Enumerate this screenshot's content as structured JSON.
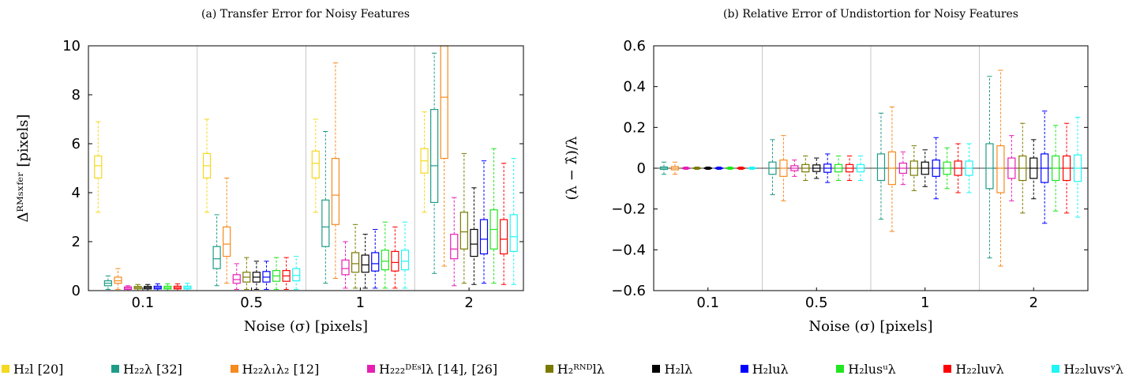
{
  "series_colors": [
    "#f5d81f",
    "#1f9c87",
    "#f58a1f",
    "#e61fb4",
    "#7a7a00",
    "#000000",
    "#0000ff",
    "#1fe61f",
    "#ff0000",
    "#1ff5f5"
  ],
  "legend": [
    "H₂l [20]",
    "H₂₂λ [32]",
    "H₂₂λ₁λ₂ [12]",
    "H₂₂₂ᴰᴱˢlλ [14], [26]",
    "H₂ᴿᴺᴰlλ",
    "H₂lλ",
    "H₂luλ",
    "H₂lusᵘλ",
    "H₂₂luvλ",
    "H₂₂luvsᵛλ"
  ],
  "chart_data": [
    {
      "type": "boxplot",
      "title": "(a) Transfer Error for Noisy Features",
      "xlabel": "Noise (σ) [pixels]",
      "ylabel": "Δᴿᴹˢˣᶠᵉʳ [pixels]",
      "categories": [
        "0.1",
        "0.5",
        "1",
        "2"
      ],
      "ylim": [
        0,
        10
      ],
      "yticks": [
        0,
        2,
        4,
        6,
        8,
        10
      ],
      "ytick_labels": [
        "0",
        "2",
        "4",
        "6",
        "8",
        "10"
      ],
      "grid": "vertical separators between groups",
      "groups": [
        {
          "category": "0.1",
          "series": [
            {
              "name": "H₂l [20]",
              "whisker_low": 3.2,
              "q1": 4.6,
              "median": 5.1,
              "q3": 5.5,
              "whisker_high": 6.9
            },
            {
              "name": "H₂₂λ [32]",
              "whisker_low": 0.05,
              "q1": 0.2,
              "median": 0.3,
              "q3": 0.4,
              "whisker_high": 0.6
            },
            {
              "name": "H₂₂λ₁λ₂ [12]",
              "whisker_low": 0.05,
              "q1": 0.3,
              "median": 0.4,
              "q3": 0.55,
              "whisker_high": 0.9
            },
            {
              "name": "H₂₂₂ᴰᴱˢlλ [14], [26]",
              "whisker_low": 0.0,
              "q1": 0.05,
              "median": 0.1,
              "q3": 0.15,
              "whisker_high": 0.2
            },
            {
              "name": "H₂ᴿᴺᴰlλ",
              "whisker_low": 0.0,
              "q1": 0.07,
              "median": 0.12,
              "q3": 0.17,
              "whisker_high": 0.25
            },
            {
              "name": "H₂lλ",
              "whisker_low": 0.0,
              "q1": 0.07,
              "median": 0.12,
              "q3": 0.17,
              "whisker_high": 0.25
            },
            {
              "name": "H₂luλ",
              "whisker_low": 0.0,
              "q1": 0.07,
              "median": 0.12,
              "q3": 0.18,
              "whisker_high": 0.28
            },
            {
              "name": "H₂lusᵘλ",
              "whisker_low": 0.0,
              "q1": 0.07,
              "median": 0.12,
              "q3": 0.18,
              "whisker_high": 0.28
            },
            {
              "name": "H₂₂luvλ",
              "whisker_low": 0.0,
              "q1": 0.07,
              "median": 0.12,
              "q3": 0.18,
              "whisker_high": 0.28
            },
            {
              "name": "H₂₂luvsᵛλ",
              "whisker_low": 0.0,
              "q1": 0.07,
              "median": 0.12,
              "q3": 0.18,
              "whisker_high": 0.3
            }
          ]
        },
        {
          "category": "0.5",
          "series": [
            {
              "name": "H₂l [20]",
              "whisker_low": 3.2,
              "q1": 4.6,
              "median": 5.1,
              "q3": 5.6,
              "whisker_high": 7.0
            },
            {
              "name": "H₂₂λ [32]",
              "whisker_low": 0.2,
              "q1": 0.9,
              "median": 1.3,
              "q3": 1.8,
              "whisker_high": 3.1
            },
            {
              "name": "H₂₂λ₁λ₂ [12]",
              "whisker_low": 0.3,
              "q1": 1.4,
              "median": 1.9,
              "q3": 2.6,
              "whisker_high": 4.6
            },
            {
              "name": "H₂₂₂ᴰᴱˢlλ [14], [26]",
              "whisker_low": 0.05,
              "q1": 0.3,
              "median": 0.45,
              "q3": 0.65,
              "whisker_high": 1.1
            },
            {
              "name": "H₂ᴿᴺᴰlλ",
              "whisker_low": 0.05,
              "q1": 0.35,
              "median": 0.55,
              "q3": 0.75,
              "whisker_high": 1.35
            },
            {
              "name": "H₂lλ",
              "whisker_low": 0.05,
              "q1": 0.35,
              "median": 0.55,
              "q3": 0.75,
              "whisker_high": 1.2
            },
            {
              "name": "H₂luλ",
              "whisker_low": 0.05,
              "q1": 0.35,
              "median": 0.55,
              "q3": 0.78,
              "whisker_high": 1.2
            },
            {
              "name": "H₂lusᵘλ",
              "whisker_low": 0.05,
              "q1": 0.38,
              "median": 0.6,
              "q3": 0.82,
              "whisker_high": 1.35
            },
            {
              "name": "H₂₂luvλ",
              "whisker_low": 0.05,
              "q1": 0.38,
              "median": 0.6,
              "q3": 0.82,
              "whisker_high": 1.35
            },
            {
              "name": "H₂₂luvsᵛλ",
              "whisker_low": 0.05,
              "q1": 0.4,
              "median": 0.62,
              "q3": 0.9,
              "whisker_high": 1.4
            }
          ]
        },
        {
          "category": "1",
          "series": [
            {
              "name": "H₂l [20]",
              "whisker_low": 3.2,
              "q1": 4.6,
              "median": 5.2,
              "q3": 5.7,
              "whisker_high": 7.0
            },
            {
              "name": "H₂₂λ [32]",
              "whisker_low": 0.3,
              "q1": 1.8,
              "median": 2.6,
              "q3": 3.7,
              "whisker_high": 6.5
            },
            {
              "name": "H₂₂λ₁λ₂ [12]",
              "whisker_low": 0.5,
              "q1": 2.7,
              "median": 3.9,
              "q3": 5.4,
              "whisker_high": 9.3
            },
            {
              "name": "H₂₂₂ᴰᴱˢlλ [14], [26]",
              "whisker_low": 0.1,
              "q1": 0.65,
              "median": 0.9,
              "q3": 1.25,
              "whisker_high": 2.0
            },
            {
              "name": "H₂ᴿᴺᴰlλ",
              "whisker_low": 0.1,
              "q1": 0.75,
              "median": 1.1,
              "q3": 1.55,
              "whisker_high": 2.7
            },
            {
              "name": "H₂lλ",
              "whisker_low": 0.1,
              "q1": 0.75,
              "median": 1.05,
              "q3": 1.45,
              "whisker_high": 2.3
            },
            {
              "name": "H₂luλ",
              "whisker_low": 0.1,
              "q1": 0.8,
              "median": 1.1,
              "q3": 1.55,
              "whisker_high": 2.5
            },
            {
              "name": "H₂lusᵘλ",
              "whisker_low": 0.1,
              "q1": 0.85,
              "median": 1.2,
              "q3": 1.65,
              "whisker_high": 2.8
            },
            {
              "name": "H₂₂luvλ",
              "whisker_low": 0.1,
              "q1": 0.8,
              "median": 1.15,
              "q3": 1.6,
              "whisker_high": 2.6
            },
            {
              "name": "H₂₂luvsᵛλ",
              "whisker_low": 0.1,
              "q1": 0.85,
              "median": 1.2,
              "q3": 1.65,
              "whisker_high": 2.8
            }
          ]
        },
        {
          "category": "2",
          "series": [
            {
              "name": "H₂l [20]",
              "whisker_low": 3.2,
              "q1": 4.8,
              "median": 5.3,
              "q3": 5.8,
              "whisker_high": 7.3
            },
            {
              "name": "H₂₂λ [32]",
              "whisker_low": 0.7,
              "q1": 3.6,
              "median": 5.1,
              "q3": 7.4,
              "whisker_high": 9.7
            },
            {
              "name": "H₂₂λ₁λ₂ [12]",
              "whisker_low": 1.0,
              "q1": 5.4,
              "median": 7.9,
              "q3": 10.0,
              "whisker_high": 10.0
            },
            {
              "name": "H₂₂₂ᴰᴱˢlλ [14], [26]",
              "whisker_low": 0.2,
              "q1": 1.3,
              "median": 1.7,
              "q3": 2.3,
              "whisker_high": 3.8
            },
            {
              "name": "H₂ᴿᴺᴰlλ",
              "whisker_low": 0.3,
              "q1": 1.7,
              "median": 2.4,
              "q3": 3.2,
              "whisker_high": 5.6
            },
            {
              "name": "H₂lλ",
              "whisker_low": 0.25,
              "q1": 1.4,
              "median": 1.9,
              "q3": 2.5,
              "whisker_high": 4.2
            },
            {
              "name": "H₂luλ",
              "whisker_low": 0.3,
              "q1": 1.5,
              "median": 2.1,
              "q3": 2.9,
              "whisker_high": 5.3
            },
            {
              "name": "H₂lusᵘλ",
              "whisker_low": 0.3,
              "q1": 1.7,
              "median": 2.5,
              "q3": 3.3,
              "whisker_high": 5.8
            },
            {
              "name": "H₂₂luvλ",
              "whisker_low": 0.25,
              "q1": 1.5,
              "median": 2.1,
              "q3": 2.9,
              "whisker_high": 5.2
            },
            {
              "name": "H₂₂luvsᵛλ",
              "whisker_low": 0.25,
              "q1": 1.6,
              "median": 2.2,
              "q3": 3.1,
              "whisker_high": 5.4
            }
          ]
        }
      ]
    },
    {
      "type": "boxplot",
      "title": "(b) Relative Error of Undistortion for Noisy Features",
      "xlabel": "Noise (σ) [pixels]",
      "ylabel": "(λ − λ̂)/λ",
      "categories": [
        "0.1",
        "0.5",
        "1",
        "2"
      ],
      "ylim": [
        -0.6,
        0.6
      ],
      "yticks": [
        -0.6,
        -0.4,
        -0.2,
        0,
        0.2,
        0.4,
        0.6
      ],
      "ytick_labels": [
        "−0.6",
        "−0.4",
        "−0.2",
        "0",
        "0.2",
        "0.4",
        "0.6"
      ],
      "grid": "vertical separators between groups",
      "groups": [
        {
          "category": "0.1",
          "series": [
            {
              "name": "H₂₂λ [32]",
              "whisker_low": -0.03,
              "q1": -0.006,
              "median": 0,
              "q3": 0.006,
              "whisker_high": 0.03
            },
            {
              "name": "H₂₂λ₁λ₂ [12]",
              "whisker_low": -0.03,
              "q1": -0.008,
              "median": 0,
              "q3": 0.008,
              "whisker_high": 0.03
            },
            {
              "name": "H₂₂₂ᴰᴱˢlλ [14], [26]",
              "whisker_low": -0.006,
              "q1": -0.002,
              "median": 0,
              "q3": 0.002,
              "whisker_high": 0.006
            },
            {
              "name": "H₂ᴿᴺᴰlλ",
              "whisker_low": -0.006,
              "q1": -0.002,
              "median": 0,
              "q3": 0.002,
              "whisker_high": 0.006
            },
            {
              "name": "H₂lλ",
              "whisker_low": -0.006,
              "q1": -0.002,
              "median": 0,
              "q3": 0.002,
              "whisker_high": 0.006
            },
            {
              "name": "H₂luλ",
              "whisker_low": -0.006,
              "q1": -0.002,
              "median": 0,
              "q3": 0.002,
              "whisker_high": 0.006
            },
            {
              "name": "H₂lusᵘλ",
              "whisker_low": -0.006,
              "q1": -0.002,
              "median": 0,
              "q3": 0.002,
              "whisker_high": 0.006
            },
            {
              "name": "H₂₂luvλ",
              "whisker_low": -0.006,
              "q1": -0.002,
              "median": 0,
              "q3": 0.002,
              "whisker_high": 0.006
            },
            {
              "name": "H₂₂luvsᵛλ",
              "whisker_low": -0.006,
              "q1": -0.002,
              "median": 0,
              "q3": 0.002,
              "whisker_high": 0.006
            }
          ]
        },
        {
          "category": "0.5",
          "series": [
            {
              "name": "H₂₂λ [32]",
              "whisker_low": -0.13,
              "q1": -0.03,
              "median": 0,
              "q3": 0.03,
              "whisker_high": 0.14
            },
            {
              "name": "H₂₂λ₁λ₂ [12]",
              "whisker_low": -0.16,
              "q1": -0.04,
              "median": 0,
              "q3": 0.04,
              "whisker_high": 0.16
            },
            {
              "name": "H₂₂₂ᴰᴱˢlλ [14], [26]",
              "whisker_low": -0.04,
              "q1": -0.012,
              "median": 0,
              "q3": 0.012,
              "whisker_high": 0.04
            },
            {
              "name": "H₂ᴿᴺᴰlλ",
              "whisker_low": -0.06,
              "q1": -0.018,
              "median": 0,
              "q3": 0.018,
              "whisker_high": 0.06
            },
            {
              "name": "H₂lλ",
              "whisker_low": -0.05,
              "q1": -0.016,
              "median": 0,
              "q3": 0.016,
              "whisker_high": 0.05
            },
            {
              "name": "H₂luλ",
              "whisker_low": -0.07,
              "q1": -0.02,
              "median": 0,
              "q3": 0.02,
              "whisker_high": 0.07
            },
            {
              "name": "H₂lusᵘλ",
              "whisker_low": -0.06,
              "q1": -0.018,
              "median": 0,
              "q3": 0.018,
              "whisker_high": 0.06
            },
            {
              "name": "H₂₂luvλ",
              "whisker_low": -0.06,
              "q1": -0.018,
              "median": 0,
              "q3": 0.018,
              "whisker_high": 0.06
            },
            {
              "name": "H₂₂luvsᵛλ",
              "whisker_low": -0.06,
              "q1": -0.018,
              "median": 0,
              "q3": 0.018,
              "whisker_high": 0.06
            }
          ]
        },
        {
          "category": "1",
          "series": [
            {
              "name": "H₂₂λ [32]",
              "whisker_low": -0.25,
              "q1": -0.06,
              "median": 0,
              "q3": 0.07,
              "whisker_high": 0.27
            },
            {
              "name": "H₂₂λ₁λ₂ [12]",
              "whisker_low": -0.31,
              "q1": -0.08,
              "median": 0,
              "q3": 0.08,
              "whisker_high": 0.3
            },
            {
              "name": "H₂₂₂ᴰᴱˢlλ [14], [26]",
              "whisker_low": -0.08,
              "q1": -0.025,
              "median": 0,
              "q3": 0.025,
              "whisker_high": 0.08
            },
            {
              "name": "H₂ᴿᴺᴰlλ",
              "whisker_low": -0.11,
              "q1": -0.035,
              "median": 0,
              "q3": 0.035,
              "whisker_high": 0.11
            },
            {
              "name": "H₂lλ",
              "whisker_low": -0.09,
              "q1": -0.03,
              "median": 0,
              "q3": 0.03,
              "whisker_high": 0.09
            },
            {
              "name": "H₂luλ",
              "whisker_low": -0.15,
              "q1": -0.04,
              "median": 0,
              "q3": 0.04,
              "whisker_high": 0.15
            },
            {
              "name": "H₂lusᵘλ",
              "whisker_low": -0.1,
              "q1": -0.03,
              "median": 0,
              "q3": 0.03,
              "whisker_high": 0.1
            },
            {
              "name": "H₂₂luvλ",
              "whisker_low": -0.12,
              "q1": -0.035,
              "median": 0,
              "q3": 0.035,
              "whisker_high": 0.12
            },
            {
              "name": "H₂₂luvsᵛλ",
              "whisker_low": -0.12,
              "q1": -0.035,
              "median": 0,
              "q3": 0.035,
              "whisker_high": 0.12
            }
          ]
        },
        {
          "category": "2",
          "series": [
            {
              "name": "H₂₂λ [32]",
              "whisker_low": -0.44,
              "q1": -0.1,
              "median": 0,
              "q3": 0.12,
              "whisker_high": 0.45
            },
            {
              "name": "H₂₂λ₁λ₂ [12]",
              "whisker_low": -0.48,
              "q1": -0.12,
              "median": 0,
              "q3": 0.11,
              "whisker_high": 0.48
            },
            {
              "name": "H₂₂₂ᴰᴱˢlλ [14], [26]",
              "whisker_low": -0.16,
              "q1": -0.05,
              "median": 0,
              "q3": 0.05,
              "whisker_high": 0.16
            },
            {
              "name": "H₂ᴿᴺᴰlλ",
              "whisker_low": -0.22,
              "q1": -0.06,
              "median": 0,
              "q3": 0.06,
              "whisker_high": 0.22
            },
            {
              "name": "H₂lλ",
              "whisker_low": -0.15,
              "q1": -0.05,
              "median": 0,
              "q3": 0.05,
              "whisker_high": 0.14
            },
            {
              "name": "H₂luλ",
              "whisker_low": -0.27,
              "q1": -0.07,
              "median": 0,
              "q3": 0.07,
              "whisker_high": 0.28
            },
            {
              "name": "H₂lusᵘλ",
              "whisker_low": -0.21,
              "q1": -0.06,
              "median": 0,
              "q3": 0.06,
              "whisker_high": 0.21
            },
            {
              "name": "H₂₂luvλ",
              "whisker_low": -0.22,
              "q1": -0.06,
              "median": 0,
              "q3": 0.06,
              "whisker_high": 0.22
            },
            {
              "name": "H₂₂luvsᵛλ",
              "whisker_low": -0.24,
              "q1": -0.065,
              "median": 0,
              "q3": 0.065,
              "whisker_high": 0.25
            }
          ]
        }
      ]
    }
  ]
}
